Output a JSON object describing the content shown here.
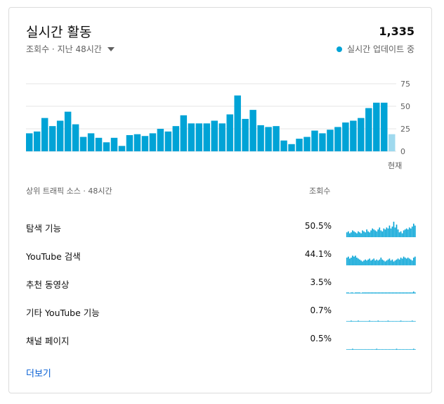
{
  "card": {
    "title": "실시간 활동",
    "total": "1,335",
    "subtitle": "조회수 · 지난 48시간",
    "realtime_label": "실시간 업데이트 중"
  },
  "colors": {
    "bar": "#00a3d6",
    "bar_current": "#9fd9ee",
    "grid": "#e6e6e6",
    "axis_text": "#606060",
    "link": "#065fd4"
  },
  "chart_data": {
    "type": "bar",
    "values": [
      20,
      22,
      37,
      28,
      34,
      44,
      30,
      16,
      20,
      15,
      10,
      15,
      6,
      18,
      19,
      17,
      20,
      25,
      22,
      28,
      40,
      31,
      31,
      31,
      34,
      31,
      41,
      62,
      36,
      46,
      29,
      27,
      28,
      12,
      8,
      14,
      16,
      23,
      20,
      24,
      27,
      32,
      34,
      37,
      48,
      54,
      54,
      19
    ],
    "ylim": [
      0,
      75
    ],
    "yticks": [
      "75",
      "50",
      "25",
      "0"
    ],
    "xlabel_end": "현재",
    "grid": true
  },
  "traffic": {
    "header_label": "상위 트래픽 소스 · 48시간",
    "header_col": "조회수",
    "sources": [
      {
        "label": "탐색 기능",
        "pct": "50.5%",
        "spark": [
          5,
          6,
          4,
          5,
          7,
          6,
          5,
          4,
          6,
          5,
          4,
          7,
          6,
          5,
          8,
          6,
          5,
          7,
          9,
          8,
          7,
          6,
          8,
          10,
          7,
          6,
          9,
          8,
          10,
          9,
          12,
          9,
          11,
          16,
          10,
          13,
          8,
          5,
          6,
          4,
          7,
          8,
          9,
          8,
          10,
          9,
          11,
          14,
          12
        ]
      },
      {
        "label": "YouTube 검색",
        "pct": "44.1%",
        "spark": [
          8,
          9,
          7,
          8,
          10,
          9,
          10,
          8,
          7,
          6,
          5,
          4,
          5,
          6,
          5,
          6,
          7,
          5,
          6,
          7,
          5,
          6,
          5,
          6,
          8,
          6,
          5,
          4,
          5,
          6,
          7,
          5,
          6,
          4,
          5,
          6,
          7,
          6,
          8,
          7,
          9,
          8,
          7,
          8,
          7,
          6,
          5,
          8,
          9
        ]
      },
      {
        "label": "추천 동영상",
        "pct": "3.5%",
        "spark": [
          1,
          1,
          0,
          1,
          1,
          0,
          1,
          1,
          1,
          1,
          0,
          1,
          1,
          1,
          1,
          1,
          1,
          1,
          1,
          1,
          1,
          1,
          1,
          1,
          1,
          1,
          1,
          1,
          1,
          1,
          1,
          1,
          1,
          1,
          1,
          1,
          1,
          1,
          1,
          1,
          1,
          1,
          1,
          1,
          1,
          1,
          1,
          2,
          1
        ]
      },
      {
        "label": "기타 YouTube 기능",
        "pct": "0.7%",
        "spark": [
          0,
          0,
          0,
          1,
          0,
          0,
          0,
          0,
          1,
          0,
          0,
          0,
          0,
          0,
          0,
          0,
          1,
          0,
          0,
          0,
          0,
          0,
          1,
          0,
          0,
          0,
          0,
          0,
          0,
          1,
          0,
          0,
          0,
          0,
          0,
          0,
          0,
          0,
          1,
          0,
          0,
          0,
          0,
          0,
          0,
          0,
          1,
          0,
          0
        ]
      },
      {
        "label": "채널 페이지",
        "pct": "0.5%",
        "spark": [
          0,
          0,
          0,
          0,
          1,
          0,
          0,
          0,
          0,
          0,
          0,
          0,
          0,
          0,
          0,
          0,
          0,
          0,
          0,
          0,
          0,
          1,
          0,
          0,
          0,
          0,
          0,
          0,
          0,
          0,
          0,
          0,
          0,
          0,
          0,
          1,
          0,
          0,
          0,
          0,
          0,
          0,
          0,
          0,
          0,
          0,
          0,
          1,
          0
        ]
      }
    ],
    "spark_max": 16
  },
  "more_label": "더보기"
}
